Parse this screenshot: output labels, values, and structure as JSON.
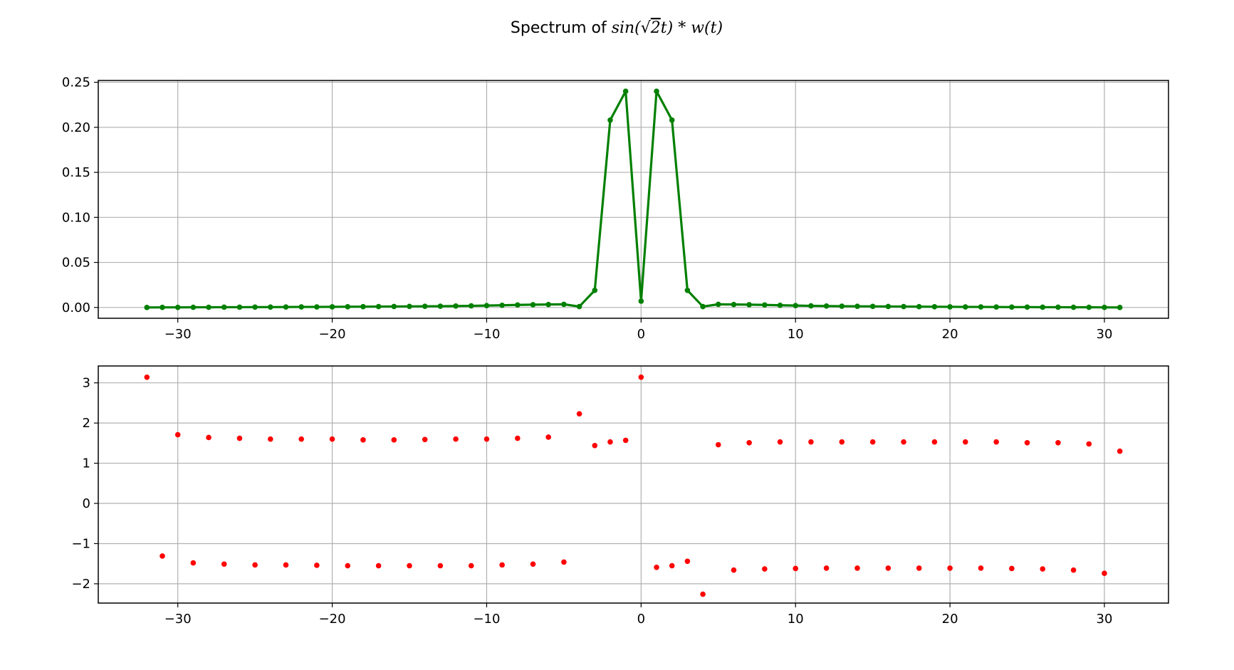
{
  "figure": {
    "title_prefix": "Spectrum of ",
    "title_math_a": "sin(√",
    "title_math_b": "2",
    "title_math_c": "t) * w(t)"
  },
  "chart_data": [
    {
      "type": "line",
      "panel": "magnitude",
      "title": "",
      "xlabel": "",
      "ylabel": "",
      "xlim": [
        -35.15,
        34.15
      ],
      "ylim": [
        -0.012,
        0.252
      ],
      "grid": true,
      "color": "#008000",
      "marker": "dot",
      "x": [
        -32,
        -31,
        -30,
        -29,
        -28,
        -27,
        -26,
        -25,
        -24,
        -23,
        -22,
        -21,
        -20,
        -19,
        -18,
        -17,
        -16,
        -15,
        -14,
        -13,
        -12,
        -11,
        -10,
        -9,
        -8,
        -7,
        -6,
        -5,
        -4,
        -3,
        -2,
        -1,
        0,
        1,
        2,
        3,
        4,
        5,
        6,
        7,
        8,
        9,
        10,
        11,
        12,
        13,
        14,
        15,
        16,
        17,
        18,
        19,
        20,
        21,
        22,
        23,
        24,
        25,
        26,
        27,
        28,
        29,
        30,
        31
      ],
      "y": [
        0.0,
        0.0001,
        0.0001,
        0.0002,
        0.0002,
        0.0003,
        0.0003,
        0.0004,
        0.0004,
        0.0005,
        0.0006,
        0.0006,
        0.0007,
        0.0008,
        0.0009,
        0.001,
        0.0011,
        0.0012,
        0.0013,
        0.0014,
        0.0016,
        0.0018,
        0.0021,
        0.0024,
        0.0028,
        0.0031,
        0.0033,
        0.0035,
        0.001,
        0.019,
        0.208,
        0.24,
        0.007,
        0.24,
        0.208,
        0.019,
        0.001,
        0.0035,
        0.0033,
        0.0031,
        0.0028,
        0.0024,
        0.0021,
        0.0018,
        0.0016,
        0.0014,
        0.0013,
        0.0012,
        0.0011,
        0.001,
        0.0009,
        0.0008,
        0.0007,
        0.0006,
        0.0006,
        0.0005,
        0.0004,
        0.0004,
        0.0003,
        0.0003,
        0.0002,
        0.0002,
        0.0001,
        0.0
      ],
      "xticks": [
        -30,
        -20,
        -10,
        0,
        10,
        20,
        30
      ],
      "xtick_labels": [
        "−30",
        "−20",
        "−10",
        "0",
        "10",
        "20",
        "30"
      ],
      "yticks": [
        0.0,
        0.05,
        0.1,
        0.15,
        0.2,
        0.25
      ],
      "ytick_labels": [
        "0.00",
        "0.05",
        "0.10",
        "0.15",
        "0.20",
        "0.25"
      ]
    },
    {
      "type": "scatter",
      "panel": "phase",
      "title": "",
      "xlabel": "",
      "ylabel": "",
      "xlim": [
        -35.15,
        34.15
      ],
      "ylim": [
        -2.48,
        3.42
      ],
      "grid": true,
      "color": "#ff0000",
      "marker": "dot",
      "x": [
        -32,
        -31,
        -30,
        -29,
        -28,
        -27,
        -26,
        -25,
        -24,
        -23,
        -22,
        -21,
        -20,
        -19,
        -18,
        -17,
        -16,
        -15,
        -14,
        -13,
        -12,
        -11,
        -10,
        -9,
        -8,
        -7,
        -6,
        -5,
        -4,
        -3,
        -2,
        -1,
        0,
        1,
        2,
        3,
        4,
        5,
        6,
        7,
        8,
        9,
        10,
        11,
        12,
        13,
        14,
        15,
        16,
        17,
        18,
        19,
        20,
        21,
        22,
        23,
        24,
        25,
        26,
        27,
        28,
        29,
        30,
        31
      ],
      "y": [
        3.14,
        -1.31,
        1.71,
        -1.48,
        1.64,
        -1.51,
        1.62,
        -1.53,
        1.6,
        -1.53,
        1.6,
        -1.54,
        1.6,
        -1.55,
        1.58,
        -1.55,
        1.58,
        -1.55,
        1.59,
        -1.55,
        1.6,
        -1.55,
        1.6,
        -1.53,
        1.62,
        -1.51,
        1.65,
        -1.46,
        2.23,
        1.44,
        1.53,
        1.57,
        3.14,
        -1.59,
        -1.55,
        -1.44,
        -2.26,
        1.46,
        -1.66,
        1.51,
        -1.63,
        1.53,
        -1.62,
        1.53,
        -1.61,
        1.53,
        -1.61,
        1.53,
        -1.61,
        1.53,
        -1.61,
        1.53,
        -1.61,
        1.53,
        -1.61,
        1.53,
        -1.62,
        1.51,
        -1.63,
        1.51,
        -1.66,
        1.48,
        -1.74,
        1.3
      ],
      "xticks": [
        -30,
        -20,
        -10,
        0,
        10,
        20,
        30
      ],
      "xtick_labels": [
        "−30",
        "−20",
        "−10",
        "0",
        "10",
        "20",
        "30"
      ],
      "yticks": [
        -2,
        -1,
        0,
        1,
        2,
        3
      ],
      "ytick_labels": [
        "−2",
        "−1",
        "0",
        "1",
        "2",
        "3"
      ]
    }
  ]
}
